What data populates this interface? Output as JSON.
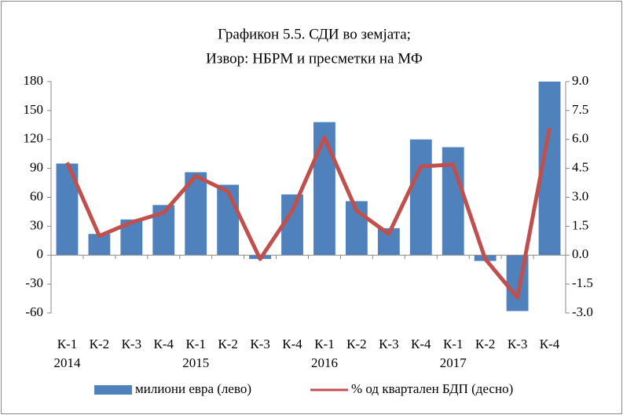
{
  "chart_data": {
    "type": "bar_line",
    "title": [
      "Графикон 5.5. СДИ во земјата;",
      "Извор: НБРМ и пресметки на МФ"
    ],
    "categories": [
      "К-1",
      "К-2",
      "К-3",
      "К-4",
      "К-1",
      "К-2",
      "К-3",
      "К-4",
      "К-1",
      "К-2",
      "К-3",
      "К-4",
      "К-1",
      "К-2",
      "К-3",
      "К-4"
    ],
    "years": [
      {
        "index": 0,
        "label": "2014"
      },
      {
        "index": 4,
        "label": "2015"
      },
      {
        "index": 8,
        "label": "2016"
      },
      {
        "index": 12,
        "label": "2017"
      }
    ],
    "series": [
      {
        "name": "милиони евра (лево)",
        "type": "bar",
        "color": "#4f81bd",
        "values": [
          95,
          22,
          37,
          52,
          86,
          73,
          -4,
          63,
          138,
          56,
          28,
          120,
          112,
          -6,
          -58,
          180
        ]
      },
      {
        "name": "% од квартален БДП (десно)",
        "type": "line",
        "axis": "y2",
        "color": "#c0504d",
        "values": [
          4.8,
          1.0,
          1.7,
          2.2,
          4.1,
          3.3,
          -0.2,
          2.3,
          6.1,
          2.3,
          1.1,
          4.6,
          4.7,
          -0.2,
          -2.2,
          6.6
        ]
      }
    ],
    "ylim": [
      -60,
      180
    ],
    "yticks": [
      -60,
      -30,
      0,
      30,
      60,
      90,
      120,
      150,
      180
    ],
    "y2lim": [
      -3,
      9
    ],
    "y2ticks": [
      {
        "value": -3,
        "label": "-3.0"
      },
      {
        "value": -1.5,
        "label": "-1.5"
      },
      {
        "value": 0,
        "label": "0.0"
      },
      {
        "value": 1.5,
        "label": "1.5"
      },
      {
        "value": 3,
        "label": "3.0"
      },
      {
        "value": 4.5,
        "label": "4.5"
      },
      {
        "value": 6,
        "label": "6.0"
      },
      {
        "value": 7.5,
        "label": "7.5"
      },
      {
        "value": 9,
        "label": "9.0"
      }
    ],
    "legend": "bottom"
  }
}
